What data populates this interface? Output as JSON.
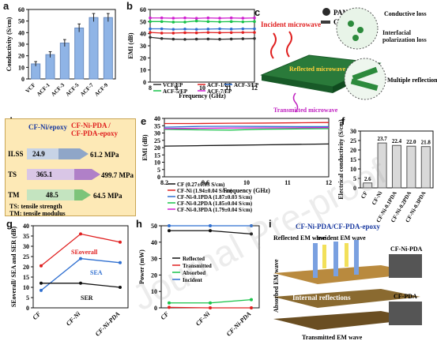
{
  "panels": [
    "a",
    "b",
    "c",
    "d",
    "e",
    "f",
    "g",
    "h",
    "i"
  ],
  "colors": {
    "blue": "#2f6fd0",
    "red": "#e02020",
    "green": "#19c34a",
    "magenta": "#d020d0",
    "gold": "#c89430"
  },
  "chart_data": [
    {
      "id": "a",
      "type": "bar",
      "title": "",
      "ylabel": "Conductivity (S/cm)",
      "ylim": [
        0,
        60
      ],
      "yticks": [
        "0",
        "10",
        "20",
        "30",
        "40",
        "50",
        "60"
      ],
      "categories": [
        "VCF",
        "ACF-1",
        "ACF-3",
        "ACF-5",
        "ACF-7",
        "ACF-9"
      ],
      "values": [
        13,
        21,
        31,
        44,
        53,
        53
      ],
      "errors": [
        2,
        2.5,
        3,
        3.5,
        3.5,
        3.5
      ]
    },
    {
      "id": "b",
      "type": "line",
      "ylabel": "EMI (dB)",
      "xlabel": "Frequency (GHz)",
      "xlim": [
        8,
        12.5
      ],
      "ylim": [
        0,
        60
      ],
      "xticks": [
        "8",
        "9",
        "10",
        "11",
        "12"
      ],
      "yticks": [
        "0",
        "10",
        "20",
        "30",
        "40",
        "50",
        "60"
      ],
      "legend": [
        "VCF/EP",
        "ACF-1/EP",
        "ACF-3/EP",
        "ACF-5/EP",
        "ACF-7/EP"
      ],
      "series": [
        {
          "name": "VCF/EP",
          "color": "#333333",
          "values": [
            37,
            36,
            35.5,
            35.3,
            35.5,
            35.6,
            35.4,
            35.6,
            35.8,
            36
          ]
        },
        {
          "name": "ACF-1/EP",
          "color": "#e02020",
          "values": [
            41,
            40.5,
            40.5,
            40.8,
            40.7,
            41,
            40.8,
            40.9,
            41,
            41
          ]
        },
        {
          "name": "ACF-3/EP",
          "color": "#2f6fd0",
          "values": [
            44,
            44,
            43.6,
            43.8,
            43.6,
            43.8,
            44,
            43.8,
            44,
            44
          ]
        },
        {
          "name": "ACF-5/EP",
          "color": "#19c34a",
          "values": [
            50,
            50,
            49.6,
            49.6,
            50.5,
            50,
            49.8,
            50,
            49.8,
            50
          ]
        },
        {
          "name": "ACF-7/EP",
          "color": "#d020d0",
          "values": [
            53,
            53,
            52.8,
            53,
            52.7,
            53,
            52.8,
            53,
            52.8,
            53
          ]
        }
      ]
    },
    {
      "id": "e",
      "type": "line",
      "ylabel": "EMI (dB)",
      "xlabel": "Frequency (GHz)",
      "xlim": [
        8.2,
        12.4
      ],
      "ylim": [
        0,
        40
      ],
      "xticks": [
        "8.2",
        "9.6",
        "10",
        "11",
        "12"
      ],
      "yticks": [
        "0",
        "5",
        "10",
        "15",
        "20",
        "25",
        "30",
        "35",
        "40"
      ],
      "legend": [
        "CF (0.27±0.03 S/cm)",
        "CF-Ni (1.94±0.04 S/cm)",
        "CF-Ni-0.1PDA (1.87±0.03 S/cm)",
        "CF-Ni-0.2PDA (1.85±0.04 S/cm)",
        "CF-Ni-0.3PDA (1.79±0.04 S/cm)"
      ],
      "series": [
        {
          "name": "CF",
          "color": "#111111",
          "values": [
            21,
            21.3,
            21.6,
            21.9,
            22.2,
            22.5
          ]
        },
        {
          "name": "CF-Ni",
          "color": "#e02020",
          "values": [
            36.5,
            36.5,
            36.7,
            36.8,
            37,
            37.2
          ]
        },
        {
          "name": "CF-Ni-0.1PDA",
          "color": "#2f6fd0",
          "values": [
            34,
            34.5,
            34.6,
            34.5,
            34.4,
            34.4
          ]
        },
        {
          "name": "CF-Ni-0.2PDA",
          "color": "#19c34a",
          "values": [
            32.5,
            32.2,
            32,
            32.6,
            32.8,
            33
          ]
        },
        {
          "name": "CF-Ni-0.3PDA",
          "color": "#d020d0",
          "values": [
            33,
            33.2,
            33.4,
            33.5,
            33.6,
            33.7
          ]
        }
      ]
    },
    {
      "id": "f",
      "type": "bar",
      "ylabel": "Electrical conductivity (S/cm)",
      "ylim": [
        0,
        30
      ],
      "yticks": [
        "0",
        "5",
        "10",
        "15",
        "20",
        "25",
        "30"
      ],
      "categories": [
        "CF",
        "CF-Ni",
        "CF-Ni-0.1PDA",
        "CF-Ni-0.2PDA",
        "CF-Ni-0.3PDA"
      ],
      "values": [
        2.6,
        23.7,
        22.4,
        22.0,
        21.8
      ],
      "value_labels": [
        "2.6",
        "23.7",
        "22.4",
        "22.0",
        "21.8"
      ]
    },
    {
      "id": "g",
      "type": "line",
      "ylabel": "SEoverall/ SEA and SER (dB)",
      "ylim": [
        0,
        40
      ],
      "yticks": [
        "0",
        "5",
        "10",
        "15",
        "20",
        "25",
        "30",
        "35",
        "40"
      ],
      "categories": [
        "CF",
        "CF-Ni",
        "CF-Ni-PDA"
      ],
      "series": [
        {
          "name": "SEoverall",
          "color": "#e02020",
          "values": [
            20.5,
            36,
            32
          ]
        },
        {
          "name": "SEA",
          "color": "#2f6fd0",
          "values": [
            8.5,
            24,
            22
          ]
        },
        {
          "name": "SER",
          "color": "#111111",
          "values": [
            12,
            12,
            10
          ]
        }
      ]
    },
    {
      "id": "h",
      "type": "line",
      "ylabel": "Power (mW)",
      "ylim": [
        0,
        50
      ],
      "yticks": [
        "0",
        "10",
        "20",
        "30",
        "40",
        "50"
      ],
      "categories": [
        "CF",
        "CF-Ni",
        "CF-Ni-PDA"
      ],
      "legend": [
        "Reflected",
        "Transmitted",
        "Absorbed",
        "Incident"
      ],
      "series": [
        {
          "name": "Reflected",
          "color": "#111111",
          "values": [
            47,
            47,
            45
          ]
        },
        {
          "name": "Transmitted",
          "color": "#e02020",
          "values": [
            0.3,
            0,
            0
          ]
        },
        {
          "name": "Absorbed",
          "color": "#19c34a",
          "values": [
            3,
            3,
            5
          ]
        },
        {
          "name": "Incident",
          "color": "#2f6fd0",
          "values": [
            50,
            50,
            50
          ]
        }
      ]
    }
  ],
  "panel_c": {
    "pani": "PANI",
    "cf": "CF",
    "incident": "Incident microwave",
    "reflected": "Reflected microwave",
    "transmitted": "Transmitted microwave",
    "conductive": "Conductive loss",
    "interfacial": "Interfacial polarization loss",
    "multiple": "Multiple reflections"
  },
  "panel_d": {
    "legend1": "CF-Ni/epoxy",
    "legend2a": "CF-Ni-PDA /",
    "legend2b": "CF-PDA-epoxy",
    "rows": [
      {
        "name": "ILSS",
        "v1": "24.9",
        "v2": "61.2 MPa"
      },
      {
        "name": "TS",
        "v1": "365.1",
        "v2": "499.7 MPa"
      },
      {
        "name": "TM",
        "v1": "48.5",
        "v2": "64.5 MPa"
      }
    ],
    "note1": "TS: tensile strength",
    "note2": "TM: tensile modulus"
  },
  "panel_i": {
    "title": "CF-Ni-PDA/CF-PDA-epoxy",
    "reflected": "Reflected EM wave",
    "incident": "Incident EM wave",
    "absorbed": "Absorbed EM wave",
    "internal": "Internal reflections",
    "transmitted": "Transmitted EM wave",
    "layer1": "CF-Ni-PDA",
    "layer2": "CF-PDA"
  },
  "watermark": "Journal Pre-proof"
}
